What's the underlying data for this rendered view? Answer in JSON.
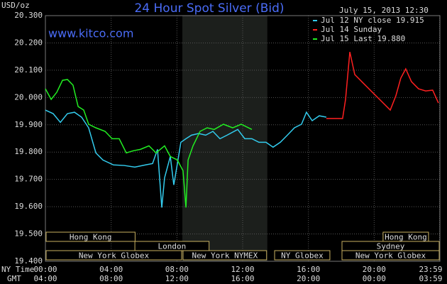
{
  "chart_data": {
    "type": "line",
    "title": "24 Hour Spot Silver (Bid)",
    "timestamp": "July 15, 2013 12:30",
    "source": "www.kitco.com",
    "y_label": "USD/oz",
    "x_label": "NY Time",
    "x2_label": "GMT",
    "xlim": [
      0,
      24
    ],
    "ylim": [
      19.4,
      20.3
    ],
    "yticks": [
      {
        "value": 19.4,
        "label": "19.400"
      },
      {
        "value": 19.5,
        "label": "19.500"
      },
      {
        "value": 19.6,
        "label": "19.600"
      },
      {
        "value": 19.7,
        "label": "19.700"
      },
      {
        "value": 19.8,
        "label": "19.800"
      },
      {
        "value": 19.9,
        "label": "19.900"
      },
      {
        "value": 20.0,
        "label": "20.000"
      },
      {
        "value": 20.1,
        "label": "20.100"
      },
      {
        "value": 20.2,
        "label": "20.200"
      },
      {
        "value": 20.3,
        "label": "20.300"
      }
    ],
    "xticks": [
      {
        "value": 0,
        "label": "00:00"
      },
      {
        "value": 4,
        "label": "04:00"
      },
      {
        "value": 8,
        "label": "08:00"
      },
      {
        "value": 12,
        "label": "12:00"
      },
      {
        "value": 16,
        "label": "16:00"
      },
      {
        "value": 20,
        "label": "20:00"
      },
      {
        "value": 23.98,
        "label": "23:59"
      }
    ],
    "x2ticks": [
      {
        "value": 0,
        "label": "04:00"
      },
      {
        "value": 4,
        "label": "08:00"
      },
      {
        "value": 8,
        "label": "12:00"
      },
      {
        "value": 12,
        "label": "16:00"
      },
      {
        "value": 16,
        "label": "20:00"
      },
      {
        "value": 20,
        "label": "00:00"
      },
      {
        "value": 23.98,
        "label": "03:59"
      }
    ],
    "grid": true,
    "shaded": {
      "start": 8.33,
      "end": 13.5
    },
    "series": [
      {
        "name": "Jul 12 NY close 19.915",
        "color": "#33ccee",
        "x": [
          0,
          0.47,
          0.91,
          1.34,
          1.77,
          2.2,
          2.63,
          3.07,
          3.5,
          4.14,
          4.79,
          5.44,
          6.09,
          6.52,
          6.82,
          7.08,
          7.25,
          7.6,
          7.81,
          8.03,
          8.24,
          8.55,
          8.89,
          9.32,
          9.75,
          10.19,
          10.62,
          11.05,
          11.7,
          12.13,
          12.56,
          12.99,
          13.42,
          13.85,
          14.29,
          14.72,
          15.15,
          15.58,
          15.88,
          16.23,
          16.66,
          17.09
        ],
        "values": [
          19.954,
          19.941,
          19.909,
          19.941,
          19.946,
          19.928,
          19.889,
          19.797,
          19.771,
          19.753,
          19.751,
          19.745,
          19.753,
          19.758,
          19.81,
          19.597,
          19.706,
          19.784,
          19.68,
          19.758,
          19.836,
          19.849,
          19.862,
          19.868,
          19.862,
          19.876,
          19.849,
          19.862,
          19.883,
          19.849,
          19.849,
          19.836,
          19.836,
          19.818,
          19.836,
          19.862,
          19.889,
          19.902,
          19.946,
          19.915,
          19.933,
          19.928
        ]
      },
      {
        "name": "Jul 14 Sunday",
        "color": "#ff2020",
        "x": [
          17.09,
          18.08,
          18.26,
          18.52,
          18.82,
          19.25,
          19.68,
          20.33,
          20.98,
          21.32,
          21.62,
          21.92,
          22.27,
          22.7,
          23.13,
          23.56,
          23.91
        ],
        "values": [
          19.923,
          19.923,
          19.993,
          20.167,
          20.084,
          20.058,
          20.032,
          19.993,
          19.954,
          20.006,
          20.071,
          20.105,
          20.058,
          20.032,
          20.024,
          20.027,
          19.98
        ]
      },
      {
        "name": "Jul 15 Last 19.880",
        "color": "#22ee22",
        "x": [
          0,
          0.35,
          0.69,
          1.04,
          1.34,
          1.68,
          1.99,
          2.33,
          2.63,
          3.07,
          3.63,
          4.06,
          4.49,
          4.92,
          5.35,
          5.78,
          6.3,
          6.73,
          7.25,
          7.6,
          8.03,
          8.37,
          8.55,
          8.68,
          8.98,
          9.41,
          9.84,
          10.27,
          10.83,
          11.39,
          11.91,
          12.56
        ],
        "values": [
          20.032,
          19.993,
          20.019,
          20.063,
          20.066,
          20.045,
          19.967,
          19.954,
          19.902,
          19.889,
          19.876,
          19.849,
          19.849,
          19.797,
          19.805,
          19.81,
          19.823,
          19.797,
          19.823,
          19.784,
          19.771,
          19.732,
          19.597,
          19.771,
          19.823,
          19.876,
          19.889,
          19.883,
          19.902,
          19.889,
          19.902,
          19.883
        ]
      }
    ],
    "session_rows": [
      [
        {
          "label": "Hong Kong",
          "start": 0,
          "end": 5.5
        },
        {
          "label": "Hong Kong",
          "start": 20.5,
          "end": 23.35
        }
      ],
      [
        {
          "label": "London",
          "start": 5.4,
          "end": 10
        },
        {
          "label": "Sydney",
          "start": 18,
          "end": 24
        }
      ],
      [
        {
          "label": "New York Globex",
          "start": 0,
          "end": 8.33
        },
        {
          "label": "New York NYMEX",
          "start": 8.33,
          "end": 13.5
        },
        {
          "label": "NY Globex",
          "start": 13.9,
          "end": 17.35
        },
        {
          "label": "New York Globex",
          "start": 18,
          "end": 24
        }
      ]
    ]
  }
}
